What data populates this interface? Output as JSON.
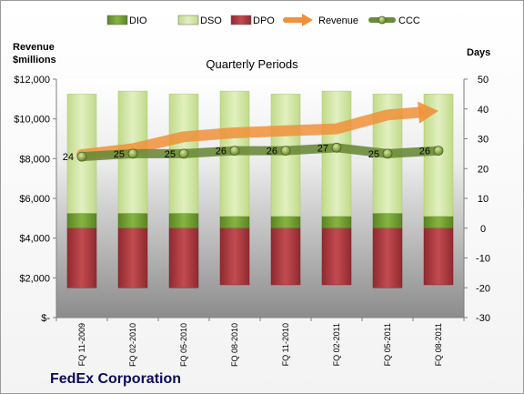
{
  "chart_data": {
    "type": "bar",
    "title": "Quarterly Periods",
    "company": "FedEx Corporation",
    "left_axis_title": [
      "Revenue",
      "$millions"
    ],
    "right_axis_title": "Days",
    "categories": [
      "FQ 11-2009",
      "FQ 02-2010",
      "FQ 05-2010",
      "FQ 08-2010",
      "FQ 11-2010",
      "FQ 02-2011",
      "FQ 05-2011",
      "FQ 08-2011"
    ],
    "left_axis": {
      "ylim": [
        0,
        12000
      ],
      "ticks": [
        0,
        2000,
        4000,
        6000,
        8000,
        10000,
        12000
      ],
      "tick_labels": [
        "$-",
        "$2,000",
        "$4,000",
        "$6,000",
        "$8,000",
        "$10,000",
        "$12,000"
      ]
    },
    "right_axis": {
      "ylim": [
        -30,
        50
      ],
      "ticks": [
        -30,
        -20,
        -10,
        0,
        10,
        20,
        30,
        40,
        50
      ],
      "tick_labels": [
        "-30",
        "-20",
        "-10",
        "0",
        "10",
        "20",
        "30",
        "40",
        "50"
      ]
    },
    "series": [
      {
        "name": "DIO",
        "type": "stacked-bar",
        "axis": "right",
        "color": "#6e9b2e",
        "values": [
          5,
          5,
          5,
          4,
          4,
          4,
          5,
          4
        ]
      },
      {
        "name": "DSO",
        "type": "stacked-bar",
        "axis": "right",
        "color": "#d3e6a6",
        "values": [
          40,
          41,
          40,
          42,
          41,
          42,
          40,
          41
        ]
      },
      {
        "name": "DPO",
        "type": "stacked-bar",
        "axis": "right",
        "color": "#b33f44",
        "values": [
          -20,
          -20,
          -20,
          -19,
          -19,
          -19,
          -20,
          -19
        ]
      },
      {
        "name": "Revenue",
        "type": "arrow-line",
        "axis": "left",
        "color": "#f0913a",
        "values": [
          8200,
          8500,
          9100,
          9300,
          9400,
          9500,
          10200,
          10400
        ]
      },
      {
        "name": "CCC",
        "type": "line",
        "axis": "right",
        "color": "#6b8a3a",
        "values": [
          24,
          25,
          25,
          26,
          26,
          27,
          25,
          26
        ],
        "labels": [
          "24",
          "25",
          "25",
          "26",
          "26",
          "27",
          "25",
          "26"
        ]
      }
    ],
    "legend_position": "top",
    "grid": false
  }
}
